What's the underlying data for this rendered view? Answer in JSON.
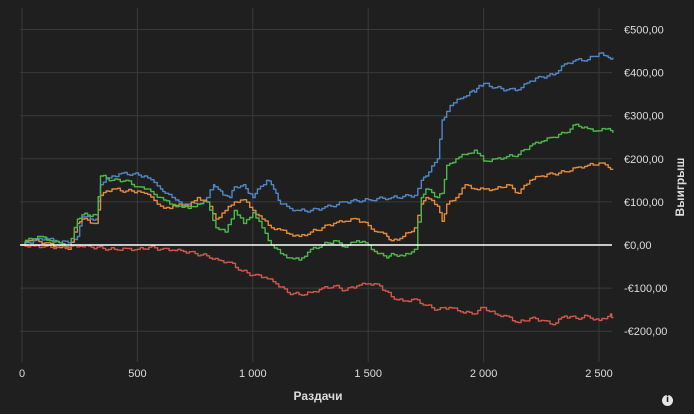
{
  "colors": {
    "background": "#1f1f1f",
    "grid": "#3a3a3a",
    "zero_line": "#ffffff",
    "text": "#dcdcdc"
  },
  "info_icon": "info-icon",
  "info_glyph": "i",
  "chart_data": {
    "type": "line",
    "title": "",
    "xlabel": "Раздачи",
    "ylabel": "Выигрыш",
    "xlim": [
      0,
      2560
    ],
    "ylim": [
      -260,
      510
    ],
    "x_ticks": [
      0,
      500,
      1000,
      1500,
      2000,
      2500
    ],
    "x_tick_labels": [
      "0",
      "500",
      "1 000",
      "1 500",
      "2 000",
      "2 500"
    ],
    "y_ticks": [
      500,
      400,
      300,
      200,
      100,
      0,
      -100,
      -200
    ],
    "y_tick_labels": [
      "€500,00",
      "€400,00",
      "€300,00",
      "€200,00",
      "€100,00",
      "€0,00",
      "-€100,00",
      "-€200,00"
    ],
    "grid": true,
    "legend": "none",
    "series": [
      {
        "color": "#4f86c6",
        "x": [
          0,
          50,
          100,
          150,
          200,
          240,
          260,
          320,
          340,
          390,
          420,
          480,
          530,
          600,
          620,
          650,
          680,
          720,
          760,
          800,
          830,
          840,
          860,
          880,
          900,
          920,
          960,
          980,
          1000,
          1020,
          1060,
          1080,
          1100,
          1120,
          1160,
          1200,
          1250,
          1300,
          1400,
          1500,
          1600,
          1700,
          1730,
          1750,
          1800,
          1820,
          1840,
          1870,
          1900,
          1940,
          1960,
          1980,
          2000,
          2050,
          2100,
          2150,
          2200,
          2250,
          2300,
          2350,
          2400,
          2450,
          2500,
          2520,
          2540,
          2560
        ],
        "y": [
          0,
          10,
          15,
          8,
          5,
          20,
          65,
          60,
          140,
          160,
          165,
          165,
          160,
          130,
          120,
          110,
          100,
          95,
          95,
          110,
          140,
          135,
          125,
          115,
          110,
          135,
          140,
          120,
          110,
          130,
          150,
          140,
          120,
          95,
          85,
          80,
          80,
          85,
          100,
          105,
          110,
          115,
          150,
          160,
          200,
          290,
          310,
          330,
          340,
          355,
          355,
          370,
          375,
          365,
          360,
          360,
          380,
          390,
          395,
          420,
          430,
          430,
          445,
          440,
          435,
          435
        ]
      },
      {
        "color": "#e48a3a",
        "x": [
          0,
          30,
          60,
          100,
          150,
          200,
          240,
          260,
          320,
          340,
          390,
          450,
          500,
          530,
          600,
          640,
          680,
          720,
          760,
          800,
          840,
          880,
          920,
          960,
          1000,
          1040,
          1080,
          1120,
          1160,
          1200,
          1250,
          1300,
          1350,
          1400,
          1450,
          1500,
          1540,
          1580,
          1600,
          1650,
          1700,
          1730,
          1750,
          1800,
          1820,
          1840,
          1880,
          1920,
          1960,
          2000,
          2050,
          2100,
          2150,
          2200,
          2250,
          2300,
          2350,
          2400,
          2450,
          2500,
          2540,
          2560
        ],
        "y": [
          0,
          10,
          12,
          5,
          -5,
          -10,
          50,
          60,
          50,
          115,
          130,
          125,
          125,
          120,
          90,
          85,
          95,
          90,
          110,
          100,
          60,
          80,
          100,
          105,
          80,
          60,
          40,
          35,
          25,
          20,
          30,
          40,
          50,
          55,
          60,
          45,
          30,
          20,
          10,
          20,
          40,
          95,
          110,
          90,
          55,
          95,
          110,
          140,
          130,
          130,
          130,
          140,
          120,
          150,
          160,
          165,
          170,
          180,
          185,
          190,
          180,
          175
        ]
      },
      {
        "color": "#4db84a",
        "x": [
          0,
          30,
          80,
          120,
          160,
          200,
          240,
          260,
          320,
          340,
          390,
          450,
          500,
          530,
          600,
          640,
          680,
          720,
          760,
          800,
          840,
          880,
          920,
          960,
          1000,
          1040,
          1080,
          1120,
          1160,
          1200,
          1250,
          1300,
          1350,
          1400,
          1450,
          1500,
          1540,
          1580,
          1600,
          1650,
          1700,
          1730,
          1750,
          1800,
          1820,
          1840,
          1880,
          1920,
          1960,
          2000,
          2050,
          2100,
          2150,
          2200,
          2250,
          2300,
          2350,
          2400,
          2450,
          2500,
          2540,
          2560
        ],
        "y": [
          0,
          15,
          20,
          10,
          5,
          -5,
          60,
          70,
          70,
          160,
          150,
          150,
          135,
          130,
          110,
          95,
          90,
          85,
          95,
          100,
          40,
          30,
          80,
          50,
          75,
          40,
          0,
          -20,
          -30,
          -35,
          -10,
          0,
          10,
          -5,
          10,
          0,
          -20,
          -30,
          -20,
          -25,
          -10,
          110,
          130,
          110,
          120,
          185,
          200,
          210,
          220,
          195,
          200,
          205,
          210,
          230,
          240,
          250,
          260,
          280,
          270,
          265,
          270,
          260
        ]
      },
      {
        "color": "#d0574a",
        "x": [
          0,
          50,
          100,
          150,
          200,
          250,
          300,
          350,
          400,
          450,
          500,
          550,
          600,
          650,
          700,
          750,
          800,
          850,
          900,
          950,
          1000,
          1050,
          1100,
          1150,
          1200,
          1250,
          1300,
          1350,
          1400,
          1450,
          1500,
          1550,
          1600,
          1650,
          1700,
          1750,
          1800,
          1850,
          1900,
          1950,
          2000,
          2050,
          2100,
          2150,
          2200,
          2250,
          2300,
          2350,
          2400,
          2450,
          2500,
          2550,
          2560
        ],
        "y": [
          0,
          -2,
          -3,
          -5,
          -5,
          -3,
          -5,
          -8,
          -10,
          -8,
          -10,
          -5,
          -10,
          -12,
          -15,
          -20,
          -25,
          -35,
          -40,
          -60,
          -70,
          -75,
          -90,
          -110,
          -115,
          -110,
          -100,
          -95,
          -105,
          -95,
          -90,
          -95,
          -120,
          -130,
          -125,
          -140,
          -150,
          -145,
          -155,
          -160,
          -145,
          -160,
          -165,
          -180,
          -170,
          -175,
          -185,
          -165,
          -170,
          -165,
          -175,
          -160,
          -170
        ]
      }
    ]
  }
}
